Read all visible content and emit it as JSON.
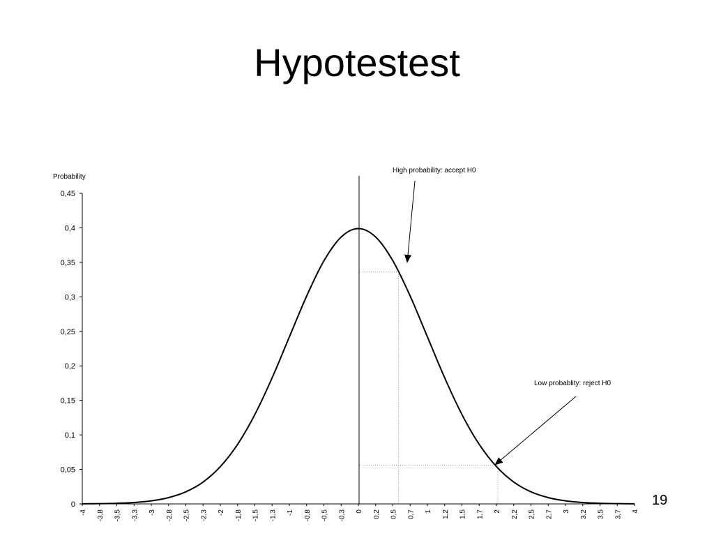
{
  "slide": {
    "title": "Hypotestest",
    "number": "19"
  },
  "chart_data": {
    "type": "line",
    "title": "",
    "ylabel": "Probability",
    "xlabel": "",
    "ylim": [
      0,
      0.45
    ],
    "xlim": [
      -4,
      4
    ],
    "y_ticks": [
      "0",
      "0,05",
      "0,1",
      "0,15",
      "0,2",
      "0,25",
      "0,3",
      "0,35",
      "0,4",
      "0,45"
    ],
    "x_tick_labels": [
      "-4",
      "-3,8",
      "-3,5",
      "-3,3",
      "-3",
      "-2,8",
      "-2,5",
      "-2,3",
      "-2",
      "-1,8",
      "-1,5",
      "-1,3",
      "-1",
      "-0,8",
      "-0,5",
      "-0,3",
      "0",
      "0,2",
      "0,5",
      "0,7",
      "1",
      "1,2",
      "1,5",
      "1,7",
      "2",
      "2,2",
      "2,5",
      "2,7",
      "3",
      "3,2",
      "3,5",
      "3,7",
      "4"
    ],
    "series": [
      {
        "x": [
          -4,
          -3.75,
          -3.5,
          -3.25,
          -3,
          -2.75,
          -2.5,
          -2.25,
          -2,
          -1.75,
          -1.5,
          -1.25,
          -1,
          -0.75,
          -0.5,
          -0.25,
          0,
          0.25,
          0.5,
          0.75,
          1,
          1.25,
          1.5,
          1.75,
          2,
          2.25,
          2.5,
          2.75,
          3,
          3.25,
          3.5,
          3.75,
          4
        ],
        "values": [
          0.0001,
          0.0004,
          0.0009,
          0.002,
          0.0044,
          0.0091,
          0.0175,
          0.0317,
          0.054,
          0.0863,
          0.1295,
          0.1826,
          0.242,
          0.3011,
          0.3521,
          0.3867,
          0.3989,
          0.3867,
          0.3521,
          0.3011,
          0.242,
          0.1826,
          0.1295,
          0.0863,
          0.054,
          0.0317,
          0.0175,
          0.0091,
          0.0044,
          0.002,
          0.0009,
          0.0004,
          0.0001
        ]
      }
    ],
    "reference_lines": [
      {
        "x": 0.58,
        "y": 0.336
      },
      {
        "x": 2.02,
        "y": 0.056
      }
    ],
    "grid": false,
    "annotations": [
      {
        "text": "High probability: accept H0",
        "target_x": 0.7,
        "target_y": 0.35
      },
      {
        "text": "Low probablity: reject H0",
        "target_x": 1.97,
        "target_y": 0.057
      }
    ]
  }
}
